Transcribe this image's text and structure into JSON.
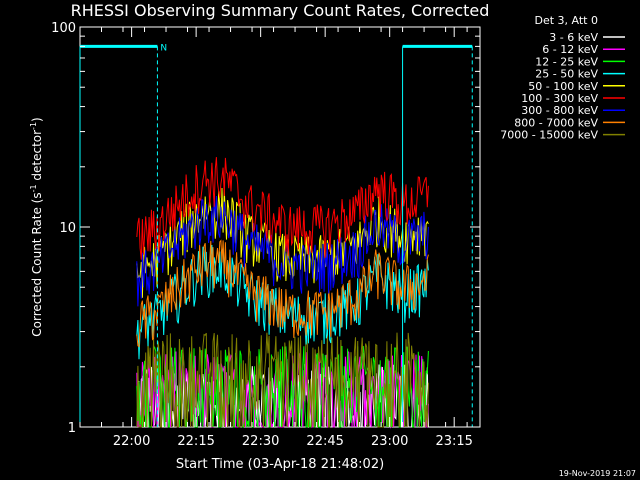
{
  "chart_data": {
    "type": "line",
    "title": "RHESSI Observing Summary Count Rates, Corrected",
    "xlabel": "Start Time (03-Apr-18 21:48:02)",
    "ylabel": "Corrected Count Rate (s",
    "ylabel_sup1": "-1",
    "ylabel_mid": " detector",
    "ylabel_sup2": "-1",
    "ylabel_end": ")",
    "yscale": "log",
    "ylim": [
      1,
      100
    ],
    "xlim_minutes": [
      21.8,
      23.35
    ],
    "y_ticks": [
      {
        "value": 1,
        "label": "1"
      },
      {
        "value": 10,
        "label": "10"
      },
      {
        "value": 100,
        "label": "100"
      }
    ],
    "x_ticks": [
      {
        "value": 22.0,
        "label": "22:00"
      },
      {
        "value": 22.25,
        "label": "22:15"
      },
      {
        "value": 22.5,
        "label": "22:30"
      },
      {
        "value": 22.75,
        "label": "22:45"
      },
      {
        "value": 23.0,
        "label": "23:00"
      },
      {
        "value": 23.25,
        "label": "23:15"
      }
    ],
    "legend_title": "Det 3, Att 0",
    "legend_position": "top-right outside",
    "series": [
      {
        "name": "3 - 6 keV",
        "color": "#ffffff",
        "base_level": 1.4
      },
      {
        "name": "6 - 12 keV",
        "color": "#ff00ff",
        "base_level": 1.6
      },
      {
        "name": "12 - 25 keV",
        "color": "#00ff00",
        "base_level": 1.7
      },
      {
        "name": "25 - 50 keV",
        "color": "#00ffff",
        "base_level": 3.6
      },
      {
        "name": "50 - 100 keV",
        "color": "#ffff00",
        "base_level": 7.0
      },
      {
        "name": "100 - 300 keV",
        "color": "#ff0000",
        "base_level": 10.0
      },
      {
        "name": "300 - 800 keV",
        "color": "#0000ff",
        "base_level": 6.5
      },
      {
        "name": "800 - 7000 keV",
        "color": "#ff8000",
        "base_level": 3.8
      },
      {
        "name": "7000 - 15000 keV",
        "color": "#808000",
        "base_level": 2.0
      }
    ],
    "profile_points": [
      {
        "t": 22.02,
        "f": 0.85
      },
      {
        "t": 22.1,
        "f": 1.0
      },
      {
        "t": 22.18,
        "f": 1.3
      },
      {
        "t": 22.28,
        "f": 1.75
      },
      {
        "t": 22.36,
        "f": 1.75
      },
      {
        "t": 22.45,
        "f": 1.3
      },
      {
        "t": 22.6,
        "f": 1.0
      },
      {
        "t": 22.75,
        "f": 1.0
      },
      {
        "t": 22.88,
        "f": 1.2
      },
      {
        "t": 22.95,
        "f": 1.6
      },
      {
        "t": 23.05,
        "f": 1.3
      },
      {
        "t": 23.12,
        "f": 1.4
      },
      {
        "t": 23.15,
        "f": 1.5
      }
    ],
    "data_range": [
      22.02,
      23.15
    ],
    "segment_bar": {
      "color": "#00ffff",
      "level": 80,
      "flag": "N",
      "segments": [
        {
          "start": 21.8,
          "end": 22.1
        },
        {
          "start": 23.05,
          "end": 23.32
        }
      ]
    },
    "vertical_markers": [
      {
        "t": 21.8,
        "style": "solid"
      },
      {
        "t": 22.1,
        "style": "dashed"
      },
      {
        "t": 23.05,
        "style": "solid"
      },
      {
        "t": 23.32,
        "style": "dashed"
      }
    ]
  },
  "footer_timestamp": "19-Nov-2019 21:07",
  "colors": {
    "background": "#000000",
    "axes": "#ffffff",
    "marker": "#00ffff"
  }
}
